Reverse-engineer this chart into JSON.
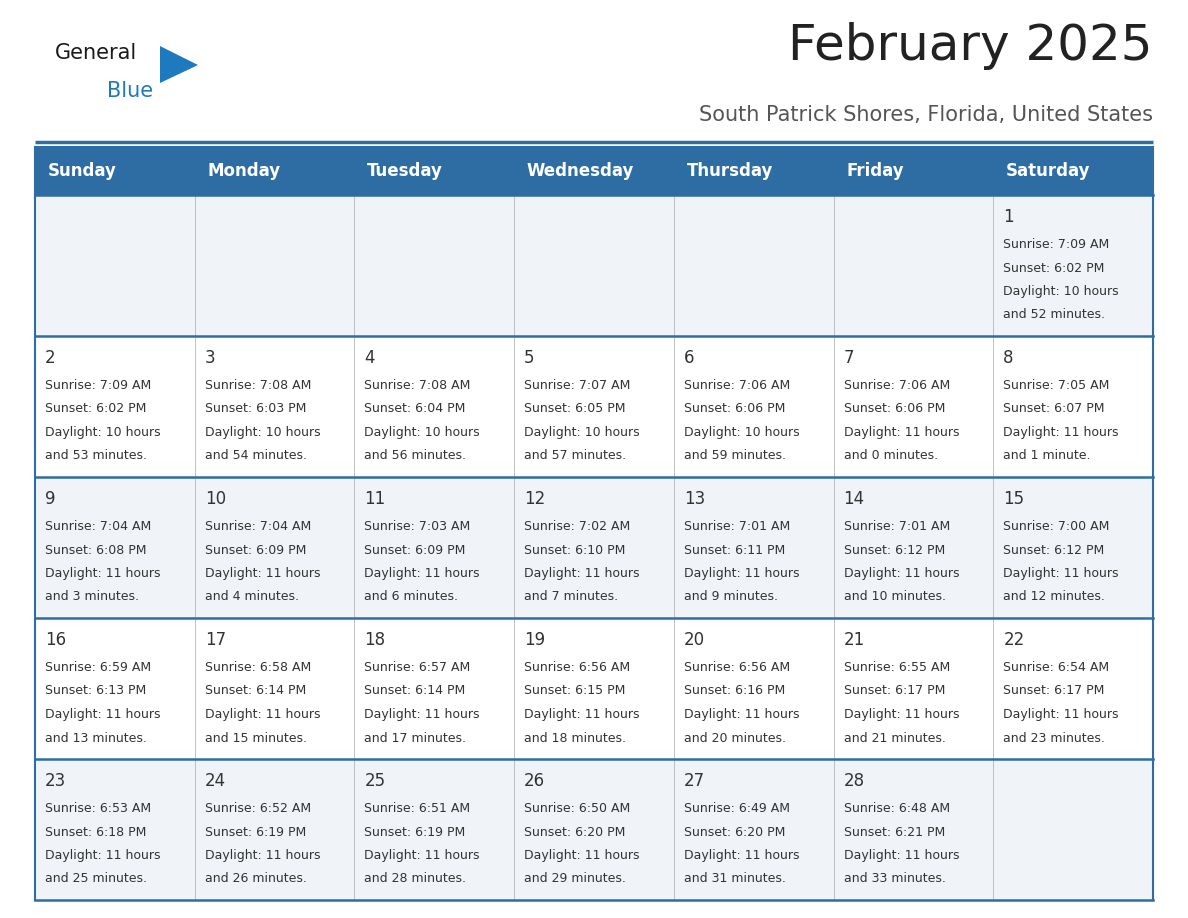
{
  "title": "February 2025",
  "subtitle": "South Patrick Shores, Florida, United States",
  "header_bg": "#2e6da4",
  "header_text_color": "#ffffff",
  "cell_bg_row0": "#f0f4f8",
  "cell_bg_row1": "#ffffff",
  "cell_bg_row2": "#f0f4f8",
  "cell_bg_row3": "#ffffff",
  "cell_bg_row4": "#f0f4f8",
  "day_names": [
    "Sunday",
    "Monday",
    "Tuesday",
    "Wednesday",
    "Thursday",
    "Friday",
    "Saturday"
  ],
  "days": [
    {
      "day": 1,
      "col": 6,
      "row": 0,
      "sunrise": "7:09 AM",
      "sunset": "6:02 PM",
      "daylight_h": "10 hours",
      "daylight_m": "and 52 minutes."
    },
    {
      "day": 2,
      "col": 0,
      "row": 1,
      "sunrise": "7:09 AM",
      "sunset": "6:02 PM",
      "daylight_h": "10 hours",
      "daylight_m": "and 53 minutes."
    },
    {
      "day": 3,
      "col": 1,
      "row": 1,
      "sunrise": "7:08 AM",
      "sunset": "6:03 PM",
      "daylight_h": "10 hours",
      "daylight_m": "and 54 minutes."
    },
    {
      "day": 4,
      "col": 2,
      "row": 1,
      "sunrise": "7:08 AM",
      "sunset": "6:04 PM",
      "daylight_h": "10 hours",
      "daylight_m": "and 56 minutes."
    },
    {
      "day": 5,
      "col": 3,
      "row": 1,
      "sunrise": "7:07 AM",
      "sunset": "6:05 PM",
      "daylight_h": "10 hours",
      "daylight_m": "and 57 minutes."
    },
    {
      "day": 6,
      "col": 4,
      "row": 1,
      "sunrise": "7:06 AM",
      "sunset": "6:06 PM",
      "daylight_h": "10 hours",
      "daylight_m": "and 59 minutes."
    },
    {
      "day": 7,
      "col": 5,
      "row": 1,
      "sunrise": "7:06 AM",
      "sunset": "6:06 PM",
      "daylight_h": "11 hours",
      "daylight_m": "and 0 minutes."
    },
    {
      "day": 8,
      "col": 6,
      "row": 1,
      "sunrise": "7:05 AM",
      "sunset": "6:07 PM",
      "daylight_h": "11 hours",
      "daylight_m": "and 1 minute."
    },
    {
      "day": 9,
      "col": 0,
      "row": 2,
      "sunrise": "7:04 AM",
      "sunset": "6:08 PM",
      "daylight_h": "11 hours",
      "daylight_m": "and 3 minutes."
    },
    {
      "day": 10,
      "col": 1,
      "row": 2,
      "sunrise": "7:04 AM",
      "sunset": "6:09 PM",
      "daylight_h": "11 hours",
      "daylight_m": "and 4 minutes."
    },
    {
      "day": 11,
      "col": 2,
      "row": 2,
      "sunrise": "7:03 AM",
      "sunset": "6:09 PM",
      "daylight_h": "11 hours",
      "daylight_m": "and 6 minutes."
    },
    {
      "day": 12,
      "col": 3,
      "row": 2,
      "sunrise": "7:02 AM",
      "sunset": "6:10 PM",
      "daylight_h": "11 hours",
      "daylight_m": "and 7 minutes."
    },
    {
      "day": 13,
      "col": 4,
      "row": 2,
      "sunrise": "7:01 AM",
      "sunset": "6:11 PM",
      "daylight_h": "11 hours",
      "daylight_m": "and 9 minutes."
    },
    {
      "day": 14,
      "col": 5,
      "row": 2,
      "sunrise": "7:01 AM",
      "sunset": "6:12 PM",
      "daylight_h": "11 hours",
      "daylight_m": "and 10 minutes."
    },
    {
      "day": 15,
      "col": 6,
      "row": 2,
      "sunrise": "7:00 AM",
      "sunset": "6:12 PM",
      "daylight_h": "11 hours",
      "daylight_m": "and 12 minutes."
    },
    {
      "day": 16,
      "col": 0,
      "row": 3,
      "sunrise": "6:59 AM",
      "sunset": "6:13 PM",
      "daylight_h": "11 hours",
      "daylight_m": "and 13 minutes."
    },
    {
      "day": 17,
      "col": 1,
      "row": 3,
      "sunrise": "6:58 AM",
      "sunset": "6:14 PM",
      "daylight_h": "11 hours",
      "daylight_m": "and 15 minutes."
    },
    {
      "day": 18,
      "col": 2,
      "row": 3,
      "sunrise": "6:57 AM",
      "sunset": "6:14 PM",
      "daylight_h": "11 hours",
      "daylight_m": "and 17 minutes."
    },
    {
      "day": 19,
      "col": 3,
      "row": 3,
      "sunrise": "6:56 AM",
      "sunset": "6:15 PM",
      "daylight_h": "11 hours",
      "daylight_m": "and 18 minutes."
    },
    {
      "day": 20,
      "col": 4,
      "row": 3,
      "sunrise": "6:56 AM",
      "sunset": "6:16 PM",
      "daylight_h": "11 hours",
      "daylight_m": "and 20 minutes."
    },
    {
      "day": 21,
      "col": 5,
      "row": 3,
      "sunrise": "6:55 AM",
      "sunset": "6:17 PM",
      "daylight_h": "11 hours",
      "daylight_m": "and 21 minutes."
    },
    {
      "day": 22,
      "col": 6,
      "row": 3,
      "sunrise": "6:54 AM",
      "sunset": "6:17 PM",
      "daylight_h": "11 hours",
      "daylight_m": "and 23 minutes."
    },
    {
      "day": 23,
      "col": 0,
      "row": 4,
      "sunrise": "6:53 AM",
      "sunset": "6:18 PM",
      "daylight_h": "11 hours",
      "daylight_m": "and 25 minutes."
    },
    {
      "day": 24,
      "col": 1,
      "row": 4,
      "sunrise": "6:52 AM",
      "sunset": "6:19 PM",
      "daylight_h": "11 hours",
      "daylight_m": "and 26 minutes."
    },
    {
      "day": 25,
      "col": 2,
      "row": 4,
      "sunrise": "6:51 AM",
      "sunset": "6:19 PM",
      "daylight_h": "11 hours",
      "daylight_m": "and 28 minutes."
    },
    {
      "day": 26,
      "col": 3,
      "row": 4,
      "sunrise": "6:50 AM",
      "sunset": "6:20 PM",
      "daylight_h": "11 hours",
      "daylight_m": "and 29 minutes."
    },
    {
      "day": 27,
      "col": 4,
      "row": 4,
      "sunrise": "6:49 AM",
      "sunset": "6:20 PM",
      "daylight_h": "11 hours",
      "daylight_m": "and 31 minutes."
    },
    {
      "day": 28,
      "col": 5,
      "row": 4,
      "sunrise": "6:48 AM",
      "sunset": "6:21 PM",
      "daylight_h": "11 hours",
      "daylight_m": "and 33 minutes."
    }
  ],
  "logo_color_general": "#1a1a1a",
  "logo_color_blue": "#1e7abf",
  "logo_triangle_color": "#1e7abf",
  "line_color": "#2e6da4",
  "border_color": "#2e6da4",
  "text_color": "#333333",
  "title_color": "#222222",
  "subtitle_color": "#555555",
  "cell_border_color": "#aaaaaa",
  "title_fontsize": 36,
  "subtitle_fontsize": 15,
  "day_num_fontsize": 12,
  "cell_text_fontsize": 9,
  "header_fontsize": 12
}
